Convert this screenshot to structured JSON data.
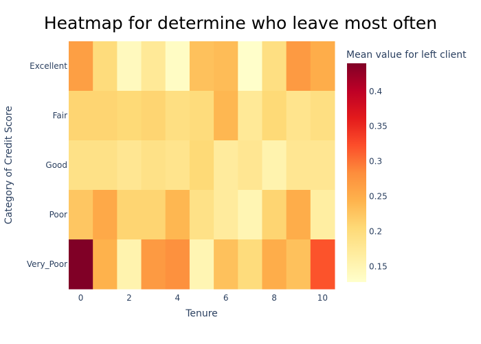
{
  "chart_data": {
    "type": "heatmap",
    "title": "Heatmap for determine who leave most often",
    "xlabel": "Tenure",
    "ylabel": "Category of Credit Score",
    "x": [
      0,
      1,
      2,
      3,
      4,
      5,
      6,
      7,
      8,
      9,
      10
    ],
    "x_ticks": [
      "0",
      "2",
      "4",
      "6",
      "8",
      "10"
    ],
    "y_categories": [
      "Excellent",
      "Fair",
      "Good",
      "Poor",
      "Very_Poor"
    ],
    "values": [
      [
        0.265,
        0.2,
        0.14,
        0.175,
        0.135,
        0.23,
        0.235,
        0.13,
        0.195,
        0.27,
        0.25
      ],
      [
        0.21,
        0.21,
        0.205,
        0.21,
        0.195,
        0.2,
        0.24,
        0.175,
        0.205,
        0.185,
        0.195
      ],
      [
        0.19,
        0.19,
        0.18,
        0.19,
        0.185,
        0.205,
        0.17,
        0.18,
        0.155,
        0.18,
        0.18
      ],
      [
        0.225,
        0.255,
        0.21,
        0.21,
        0.24,
        0.19,
        0.17,
        0.15,
        0.21,
        0.25,
        0.165
      ],
      [
        0.44,
        0.245,
        0.155,
        0.27,
        0.28,
        0.15,
        0.23,
        0.2,
        0.25,
        0.23,
        0.32
      ]
    ],
    "colorbar": {
      "title": "Mean value for left client",
      "range": [
        0.128,
        0.44
      ],
      "ticks": [
        "0.15",
        "0.2",
        "0.25",
        "0.3",
        "0.35",
        "0.4"
      ],
      "colorscale": [
        "#ffffcc",
        "#ffeda0",
        "#fed976",
        "#feb24c",
        "#fd8d3c",
        "#fc4e2a",
        "#e31a1c",
        "#bd0026",
        "#800026"
      ]
    }
  }
}
